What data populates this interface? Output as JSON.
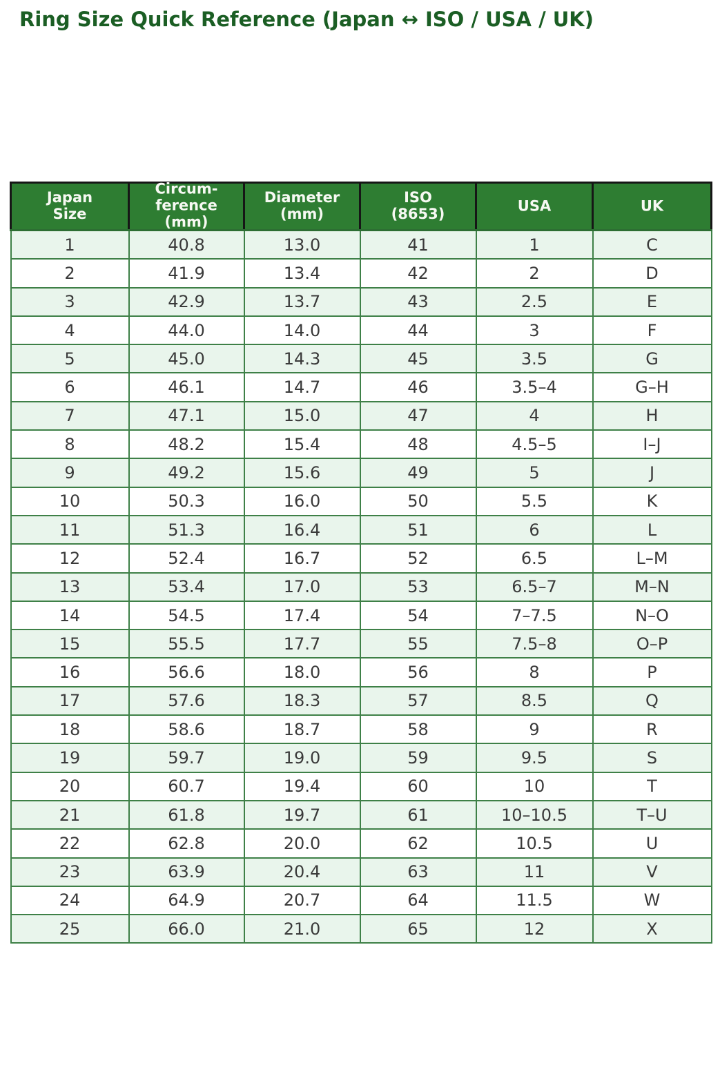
{
  "title": "Ring Size Quick Reference (Japan ↔ ISO / USA / UK)",
  "colors": {
    "title_text": "#1b5e24",
    "header_background": "#2e7d32",
    "header_text": "#f7f9f3",
    "header_border": "#161616",
    "grid_border_green": "#3e8047",
    "row_alt_background": "#e9f5ec",
    "row_background": "#ffffff",
    "body_text": "#3a3a3a"
  },
  "chart_data": {
    "type": "table",
    "title": "Ring Size Quick Reference (Japan ↔ ISO / USA / UK)",
    "columns": [
      "Japan\nSize",
      "Circum-\nference\n(mm)",
      "Diameter\n(mm)",
      "ISO\n(8653)",
      "USA",
      "UK"
    ],
    "rows": [
      [
        "1",
        "40.8",
        "13.0",
        "41",
        "1",
        "C"
      ],
      [
        "2",
        "41.9",
        "13.4",
        "42",
        "2",
        "D"
      ],
      [
        "3",
        "42.9",
        "13.7",
        "43",
        "2.5",
        "E"
      ],
      [
        "4",
        "44.0",
        "14.0",
        "44",
        "3",
        "F"
      ],
      [
        "5",
        "45.0",
        "14.3",
        "45",
        "3.5",
        "G"
      ],
      [
        "6",
        "46.1",
        "14.7",
        "46",
        "3.5–4",
        "G–H"
      ],
      [
        "7",
        "47.1",
        "15.0",
        "47",
        "4",
        "H"
      ],
      [
        "8",
        "48.2",
        "15.4",
        "48",
        "4.5–5",
        "I–J"
      ],
      [
        "9",
        "49.2",
        "15.6",
        "49",
        "5",
        "J"
      ],
      [
        "10",
        "50.3",
        "16.0",
        "50",
        "5.5",
        "K"
      ],
      [
        "11",
        "51.3",
        "16.4",
        "51",
        "6",
        "L"
      ],
      [
        "12",
        "52.4",
        "16.7",
        "52",
        "6.5",
        "L–M"
      ],
      [
        "13",
        "53.4",
        "17.0",
        "53",
        "6.5–7",
        "M–N"
      ],
      [
        "14",
        "54.5",
        "17.4",
        "54",
        "7–7.5",
        "N–O"
      ],
      [
        "15",
        "55.5",
        "17.7",
        "55",
        "7.5–8",
        "O–P"
      ],
      [
        "16",
        "56.6",
        "18.0",
        "56",
        "8",
        "P"
      ],
      [
        "17",
        "57.6",
        "18.3",
        "57",
        "8.5",
        "Q"
      ],
      [
        "18",
        "58.6",
        "18.7",
        "58",
        "9",
        "R"
      ],
      [
        "19",
        "59.7",
        "19.0",
        "59",
        "9.5",
        "S"
      ],
      [
        "20",
        "60.7",
        "19.4",
        "60",
        "10",
        "T"
      ],
      [
        "21",
        "61.8",
        "19.7",
        "61",
        "10–10.5",
        "T–U"
      ],
      [
        "22",
        "62.8",
        "20.0",
        "62",
        "10.5",
        "U"
      ],
      [
        "23",
        "63.9",
        "20.4",
        "63",
        "11",
        "V"
      ],
      [
        "24",
        "64.9",
        "20.7",
        "64",
        "11.5",
        "W"
      ],
      [
        "25",
        "66.0",
        "21.0",
        "65",
        "12",
        "X"
      ]
    ]
  }
}
